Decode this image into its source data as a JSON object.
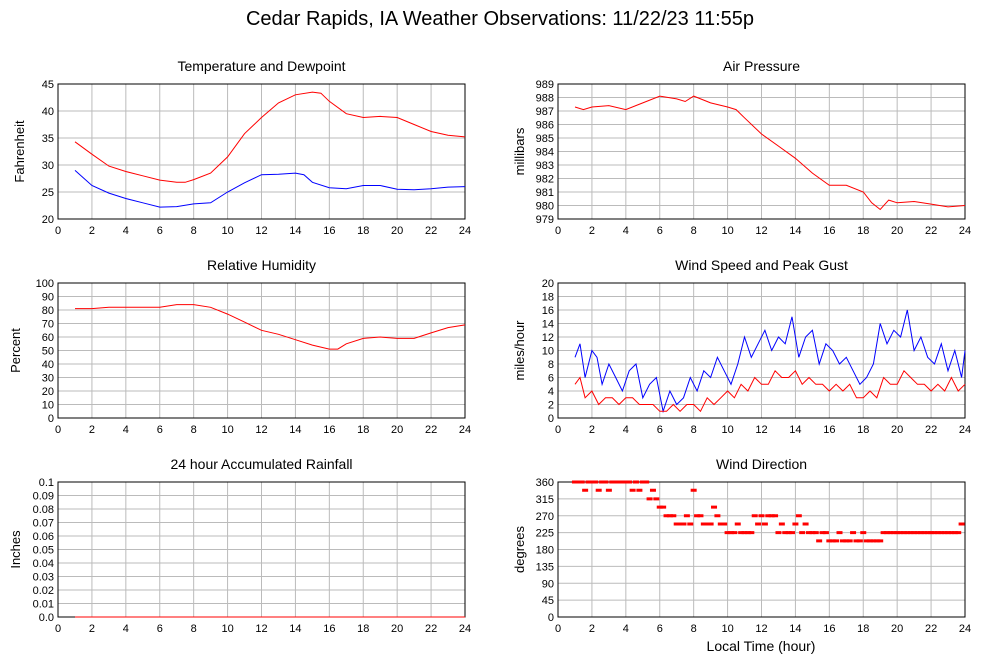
{
  "page": {
    "title": "Cedar Rapids, IA Weather Observations: 11/22/23 11:55p"
  },
  "footer": {
    "xlabel": "Local Time (hour)"
  },
  "colors": {
    "series_red": "#ff0000",
    "series_blue": "#0000ff",
    "grid": "#bbbbbb"
  },
  "chart_data": [
    {
      "id": "temp",
      "type": "line",
      "title": "Temperature and Dewpoint",
      "ylabel": "Fahrenheit",
      "xlim": [
        0,
        24
      ],
      "ylim": [
        20,
        45
      ],
      "xticks": [
        0,
        2,
        4,
        6,
        8,
        10,
        12,
        14,
        16,
        18,
        20,
        22,
        24
      ],
      "yticks": [
        20,
        25,
        30,
        35,
        40,
        45
      ],
      "grid": true,
      "series": [
        {
          "color": "#ff0000",
          "x": [
            1,
            2,
            3,
            4,
            5,
            6,
            7,
            7.5,
            8,
            9,
            10,
            11,
            12,
            13,
            14,
            15,
            15.5,
            16,
            17,
            18,
            19,
            20,
            21,
            22,
            23,
            24
          ],
          "y": [
            34.3,
            32,
            29.8,
            28.8,
            28,
            27.2,
            26.8,
            26.8,
            27.3,
            28.5,
            31.5,
            35.8,
            38.8,
            41.5,
            43,
            43.5,
            43.3,
            41.8,
            39.5,
            38.8,
            39,
            38.8,
            37.5,
            36.2,
            35.5,
            35.2
          ]
        },
        {
          "color": "#0000ff",
          "x": [
            1,
            2,
            3,
            4,
            5,
            6,
            7,
            8,
            9,
            10,
            11,
            12,
            13,
            14,
            14.5,
            15,
            16,
            17,
            18,
            19,
            20,
            21,
            22,
            23,
            24
          ],
          "y": [
            29,
            26.2,
            24.8,
            23.8,
            23,
            22.2,
            22.3,
            22.8,
            23,
            25,
            26.7,
            28.2,
            28.3,
            28.5,
            28.2,
            26.8,
            25.8,
            25.6,
            26.2,
            26.2,
            25.5,
            25.4,
            25.6,
            25.9,
            26
          ]
        }
      ]
    },
    {
      "id": "pres",
      "type": "line",
      "title": "Air Pressure",
      "ylabel": "millibars",
      "xlim": [
        0,
        24
      ],
      "ylim": [
        979,
        989
      ],
      "xticks": [
        0,
        2,
        4,
        6,
        8,
        10,
        12,
        14,
        16,
        18,
        20,
        22,
        24
      ],
      "yticks": [
        979,
        980,
        981,
        982,
        983,
        984,
        985,
        986,
        987,
        988,
        989
      ],
      "grid": true,
      "series": [
        {
          "color": "#ff0000",
          "x": [
            1,
            1.5,
            2,
            3,
            4,
            5,
            6,
            7,
            7.5,
            8,
            9,
            10,
            10.5,
            11,
            12,
            13,
            14,
            15,
            16,
            17,
            18,
            18.5,
            19,
            19.5,
            20,
            21,
            22,
            23,
            24
          ],
          "y": [
            987.3,
            987.1,
            987.3,
            987.4,
            987.1,
            987.6,
            988.1,
            987.9,
            987.7,
            988.1,
            987.6,
            987.3,
            987.1,
            986.5,
            985.3,
            984.4,
            983.5,
            982.4,
            981.5,
            981.5,
            981,
            980.2,
            979.7,
            980.4,
            980.2,
            980.3,
            980.1,
            979.9,
            980
          ]
        }
      ]
    },
    {
      "id": "rh",
      "type": "line",
      "title": "Relative Humidity",
      "ylabel": "Percent",
      "xlim": [
        0,
        24
      ],
      "ylim": [
        0,
        100
      ],
      "xticks": [
        0,
        2,
        4,
        6,
        8,
        10,
        12,
        14,
        16,
        18,
        20,
        22,
        24
      ],
      "yticks": [
        0,
        10,
        20,
        30,
        40,
        50,
        60,
        70,
        80,
        90,
        100
      ],
      "grid": true,
      "series": [
        {
          "color": "#ff0000",
          "x": [
            1,
            2,
            3,
            4,
            5,
            6,
            7,
            8,
            9,
            10,
            11,
            12,
            13,
            14,
            15,
            16,
            16.5,
            17,
            18,
            19,
            20,
            21,
            22,
            23,
            24
          ],
          "y": [
            81,
            81,
            82,
            82,
            82,
            82,
            84,
            84,
            82,
            77,
            71,
            65,
            62,
            58,
            54,
            51,
            51,
            55,
            59,
            60,
            59,
            59,
            63,
            67,
            69
          ]
        }
      ]
    },
    {
      "id": "wind",
      "type": "line",
      "title": "Wind Speed and Peak Gust",
      "ylabel": "miles/hour",
      "xlim": [
        0,
        24
      ],
      "ylim": [
        0,
        20
      ],
      "xticks": [
        0,
        2,
        4,
        6,
        8,
        10,
        12,
        14,
        16,
        18,
        20,
        22,
        24
      ],
      "yticks": [
        0,
        2,
        4,
        6,
        8,
        10,
        12,
        14,
        16,
        18,
        20
      ],
      "grid": true,
      "series": [
        {
          "color": "#0000ff",
          "x": [
            1,
            1.3,
            1.6,
            2,
            2.3,
            2.6,
            3,
            3.4,
            3.8,
            4.2,
            4.6,
            5,
            5.4,
            5.8,
            6.2,
            6.6,
            7,
            7.4,
            7.8,
            8.2,
            8.6,
            9,
            9.4,
            9.8,
            10.2,
            10.6,
            11,
            11.4,
            11.8,
            12.2,
            12.6,
            13,
            13.4,
            13.8,
            14.2,
            14.6,
            15,
            15.4,
            15.8,
            16.2,
            16.6,
            17,
            17.4,
            17.8,
            18.2,
            18.6,
            19,
            19.4,
            19.8,
            20.2,
            20.6,
            21,
            21.4,
            21.8,
            22.2,
            22.6,
            23,
            23.4,
            23.8,
            24
          ],
          "y": [
            9,
            11,
            6,
            10,
            9,
            5,
            8,
            6,
            4,
            7,
            8,
            3,
            5,
            6,
            1,
            4,
            2,
            3,
            6,
            4,
            7,
            6,
            9,
            7,
            5,
            8,
            12,
            9,
            11,
            13,
            10,
            12,
            11,
            15,
            9,
            12,
            13,
            8,
            11,
            10,
            8,
            9,
            7,
            5,
            6,
            8,
            14,
            11,
            13,
            12,
            16,
            10,
            12,
            9,
            8,
            11,
            7,
            10,
            6,
            10
          ]
        },
        {
          "color": "#ff0000",
          "x": [
            1,
            1.3,
            1.6,
            2,
            2.4,
            2.8,
            3.2,
            3.6,
            4,
            4.4,
            4.8,
            5.2,
            5.6,
            6,
            6.4,
            6.8,
            7.2,
            7.6,
            8,
            8.4,
            8.8,
            9.2,
            9.6,
            10,
            10.4,
            10.8,
            11.2,
            11.6,
            12,
            12.4,
            12.8,
            13.2,
            13.6,
            14,
            14.4,
            14.8,
            15.2,
            15.6,
            16,
            16.4,
            16.8,
            17.2,
            17.6,
            18,
            18.4,
            18.8,
            19.2,
            19.6,
            20,
            20.4,
            20.8,
            21.2,
            21.6,
            22,
            22.4,
            22.8,
            23.2,
            23.6,
            24
          ],
          "y": [
            5,
            6,
            3,
            4,
            2,
            3,
            3,
            2,
            3,
            3,
            2,
            2,
            2,
            1,
            1,
            2,
            1,
            2,
            2,
            1,
            3,
            2,
            3,
            4,
            3,
            5,
            4,
            6,
            5,
            5,
            7,
            6,
            6,
            7,
            5,
            6,
            5,
            5,
            4,
            5,
            4,
            5,
            3,
            3,
            4,
            3,
            6,
            5,
            5,
            7,
            6,
            5,
            5,
            4,
            5,
            4,
            6,
            4,
            5
          ]
        }
      ]
    },
    {
      "id": "rain",
      "type": "line",
      "title": "24 hour Accumulated Rainfall",
      "ylabel": "Inches",
      "xlim": [
        0,
        24
      ],
      "ylim": [
        0,
        0.1
      ],
      "xticks": [
        0,
        2,
        4,
        6,
        8,
        10,
        12,
        14,
        16,
        18,
        20,
        22,
        24
      ],
      "yticks": [
        0.0,
        0.01,
        0.02,
        0.03,
        0.04,
        0.05,
        0.06,
        0.07,
        0.08,
        0.09,
        0.1
      ],
      "ytick_labels": [
        "0.0",
        "0.01",
        "0.02",
        "0.03",
        "0.04",
        "0.05",
        "0.06",
        "0.07",
        "0.08",
        "0.09",
        "0.1"
      ],
      "grid": true,
      "series": [
        {
          "color": "#ff0000",
          "x": [
            1,
            24
          ],
          "y": [
            0,
            0
          ]
        }
      ]
    },
    {
      "id": "dir",
      "type": "scatter",
      "title": "Wind Direction",
      "ylabel": "degrees",
      "xlim": [
        0,
        24
      ],
      "ylim": [
        0,
        360
      ],
      "xticks": [
        0,
        2,
        4,
        6,
        8,
        10,
        12,
        14,
        16,
        18,
        20,
        22,
        24
      ],
      "yticks": [
        0,
        45,
        90,
        135,
        180,
        225,
        270,
        315,
        360
      ],
      "grid": true,
      "series": [
        {
          "color": "#ff0000",
          "x": [
            1,
            1.2,
            1.4,
            1.6,
            1.8,
            2,
            2.2,
            2.4,
            2.6,
            2.8,
            3,
            3.2,
            3.4,
            3.6,
            3.8,
            4,
            4.2,
            4.4,
            4.6,
            4.8,
            5,
            5.2,
            5.4,
            5.6,
            5.8,
            6,
            6.2,
            6.4,
            6.6,
            6.8,
            7,
            7.2,
            7.4,
            7.6,
            7.8,
            8,
            8.2,
            8.4,
            8.6,
            8.8,
            9,
            9.2,
            9.4,
            9.6,
            9.8,
            10,
            10.2,
            10.4,
            10.6,
            10.8,
            11,
            11.2,
            11.4,
            11.6,
            11.8,
            12,
            12.2,
            12.4,
            12.6,
            12.8,
            13,
            13.2,
            13.4,
            13.6,
            13.8,
            14,
            14.2,
            14.4,
            14.6,
            14.8,
            15,
            15.2,
            15.4,
            15.6,
            15.8,
            16,
            16.2,
            16.4,
            16.6,
            16.8,
            17,
            17.2,
            17.4,
            17.6,
            17.8,
            18,
            18.2,
            18.4,
            18.6,
            18.8,
            19,
            19.2,
            19.4,
            19.6,
            19.8,
            20,
            20.2,
            20.4,
            20.6,
            20.8,
            21,
            21.2,
            21.4,
            21.6,
            21.8,
            22,
            22.2,
            22.4,
            22.6,
            22.8,
            23,
            23.2,
            23.4,
            23.6,
            23.8
          ],
          "y": [
            360,
            360,
            360,
            338,
            360,
            360,
            360,
            338,
            360,
            360,
            338,
            360,
            360,
            360,
            360,
            360,
            360,
            338,
            360,
            338,
            360,
            360,
            315,
            338,
            315,
            293,
            293,
            270,
            270,
            270,
            248,
            248,
            248,
            270,
            248,
            338,
            270,
            270,
            248,
            248,
            248,
            293,
            270,
            248,
            248,
            225,
            225,
            225,
            248,
            225,
            225,
            225,
            225,
            270,
            248,
            270,
            248,
            270,
            270,
            270,
            225,
            248,
            225,
            225,
            225,
            248,
            270,
            225,
            248,
            225,
            225,
            225,
            203,
            225,
            225,
            203,
            203,
            203,
            225,
            203,
            203,
            203,
            225,
            203,
            203,
            225,
            203,
            203,
            203,
            203,
            203,
            225,
            225,
            225,
            225,
            225,
            225,
            225,
            225,
            225,
            225,
            225,
            225,
            225,
            225,
            225,
            225,
            225,
            225,
            225,
            225,
            225,
            225,
            225,
            248
          ]
        }
      ]
    }
  ]
}
